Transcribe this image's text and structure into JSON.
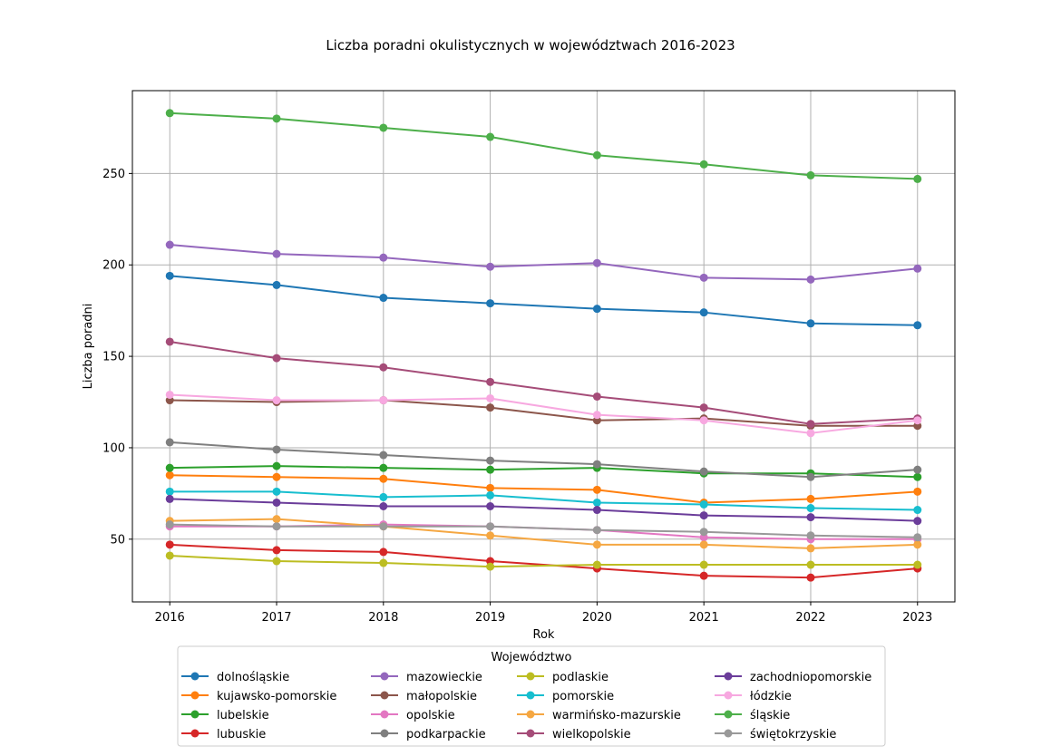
{
  "chart_data": {
    "type": "line",
    "title": "Liczba poradni okulistycznych w województwach 2016-2023",
    "xlabel": "Rok",
    "ylabel": "Liczba poradni",
    "x": [
      2016,
      2017,
      2018,
      2019,
      2020,
      2021,
      2022,
      2023
    ],
    "xlim": [
      2015.65,
      2023.35
    ],
    "ylim": [
      15.7,
      295.3
    ],
    "yticks": [
      50,
      100,
      150,
      200,
      250
    ],
    "grid": true,
    "legend": {
      "title": "Województwo",
      "placement": "bottom-center",
      "columns": 4
    },
    "series": [
      {
        "name": "dolnośląskie",
        "color": "#1f77b4",
        "values": [
          194,
          189,
          182,
          179,
          176,
          174,
          168,
          167
        ]
      },
      {
        "name": "kujawsko-pomorskie",
        "color": "#ff7f0e",
        "values": [
          85,
          84,
          83,
          78,
          77,
          70,
          72,
          76
        ]
      },
      {
        "name": "lubelskie",
        "color": "#2ca02c",
        "values": [
          89,
          90,
          89,
          88,
          89,
          86,
          86,
          84
        ]
      },
      {
        "name": "lubuskie",
        "color": "#d62728",
        "values": [
          47,
          44,
          43,
          38,
          34,
          30,
          29,
          34
        ]
      },
      {
        "name": "mazowieckie",
        "color": "#9467bd",
        "values": [
          211,
          206,
          204,
          199,
          201,
          193,
          192,
          198
        ]
      },
      {
        "name": "małopolskie",
        "color": "#8c564b",
        "values": [
          126,
          125,
          126,
          122,
          115,
          116,
          112,
          112
        ]
      },
      {
        "name": "opolskie",
        "color": "#e377c2",
        "values": [
          57,
          57,
          58,
          57,
          55,
          51,
          50,
          50
        ]
      },
      {
        "name": "podkarpackie",
        "color": "#7f7f7f",
        "values": [
          103,
          99,
          96,
          93,
          91,
          87,
          84,
          88
        ]
      },
      {
        "name": "podlaskie",
        "color": "#bcbd22",
        "values": [
          41,
          38,
          37,
          35,
          36,
          36,
          36,
          36
        ]
      },
      {
        "name": "pomorskie",
        "color": "#17becf",
        "values": [
          76,
          76,
          73,
          74,
          70,
          69,
          67,
          66
        ]
      },
      {
        "name": "warmińsko-mazurskie",
        "color": "#f5a742",
        "values": [
          60,
          61,
          57,
          52,
          47,
          47,
          45,
          47
        ]
      },
      {
        "name": "wielkopolskie",
        "color": "#a54c78",
        "values": [
          158,
          149,
          144,
          136,
          128,
          122,
          113,
          116
        ]
      },
      {
        "name": "zachodniopomorskie",
        "color": "#6b3d9a",
        "values": [
          72,
          70,
          68,
          68,
          66,
          63,
          62,
          60
        ]
      },
      {
        "name": "łódzkie",
        "color": "#f7a8e0",
        "values": [
          129,
          126,
          126,
          127,
          118,
          115,
          108,
          115
        ]
      },
      {
        "name": "śląskie",
        "color": "#4daf4a",
        "values": [
          283,
          280,
          275,
          270,
          260,
          255,
          249,
          247
        ]
      },
      {
        "name": "świętokrzyskie",
        "color": "#999999",
        "values": [
          58,
          57,
          57,
          57,
          55,
          54,
          52,
          51
        ]
      }
    ]
  }
}
